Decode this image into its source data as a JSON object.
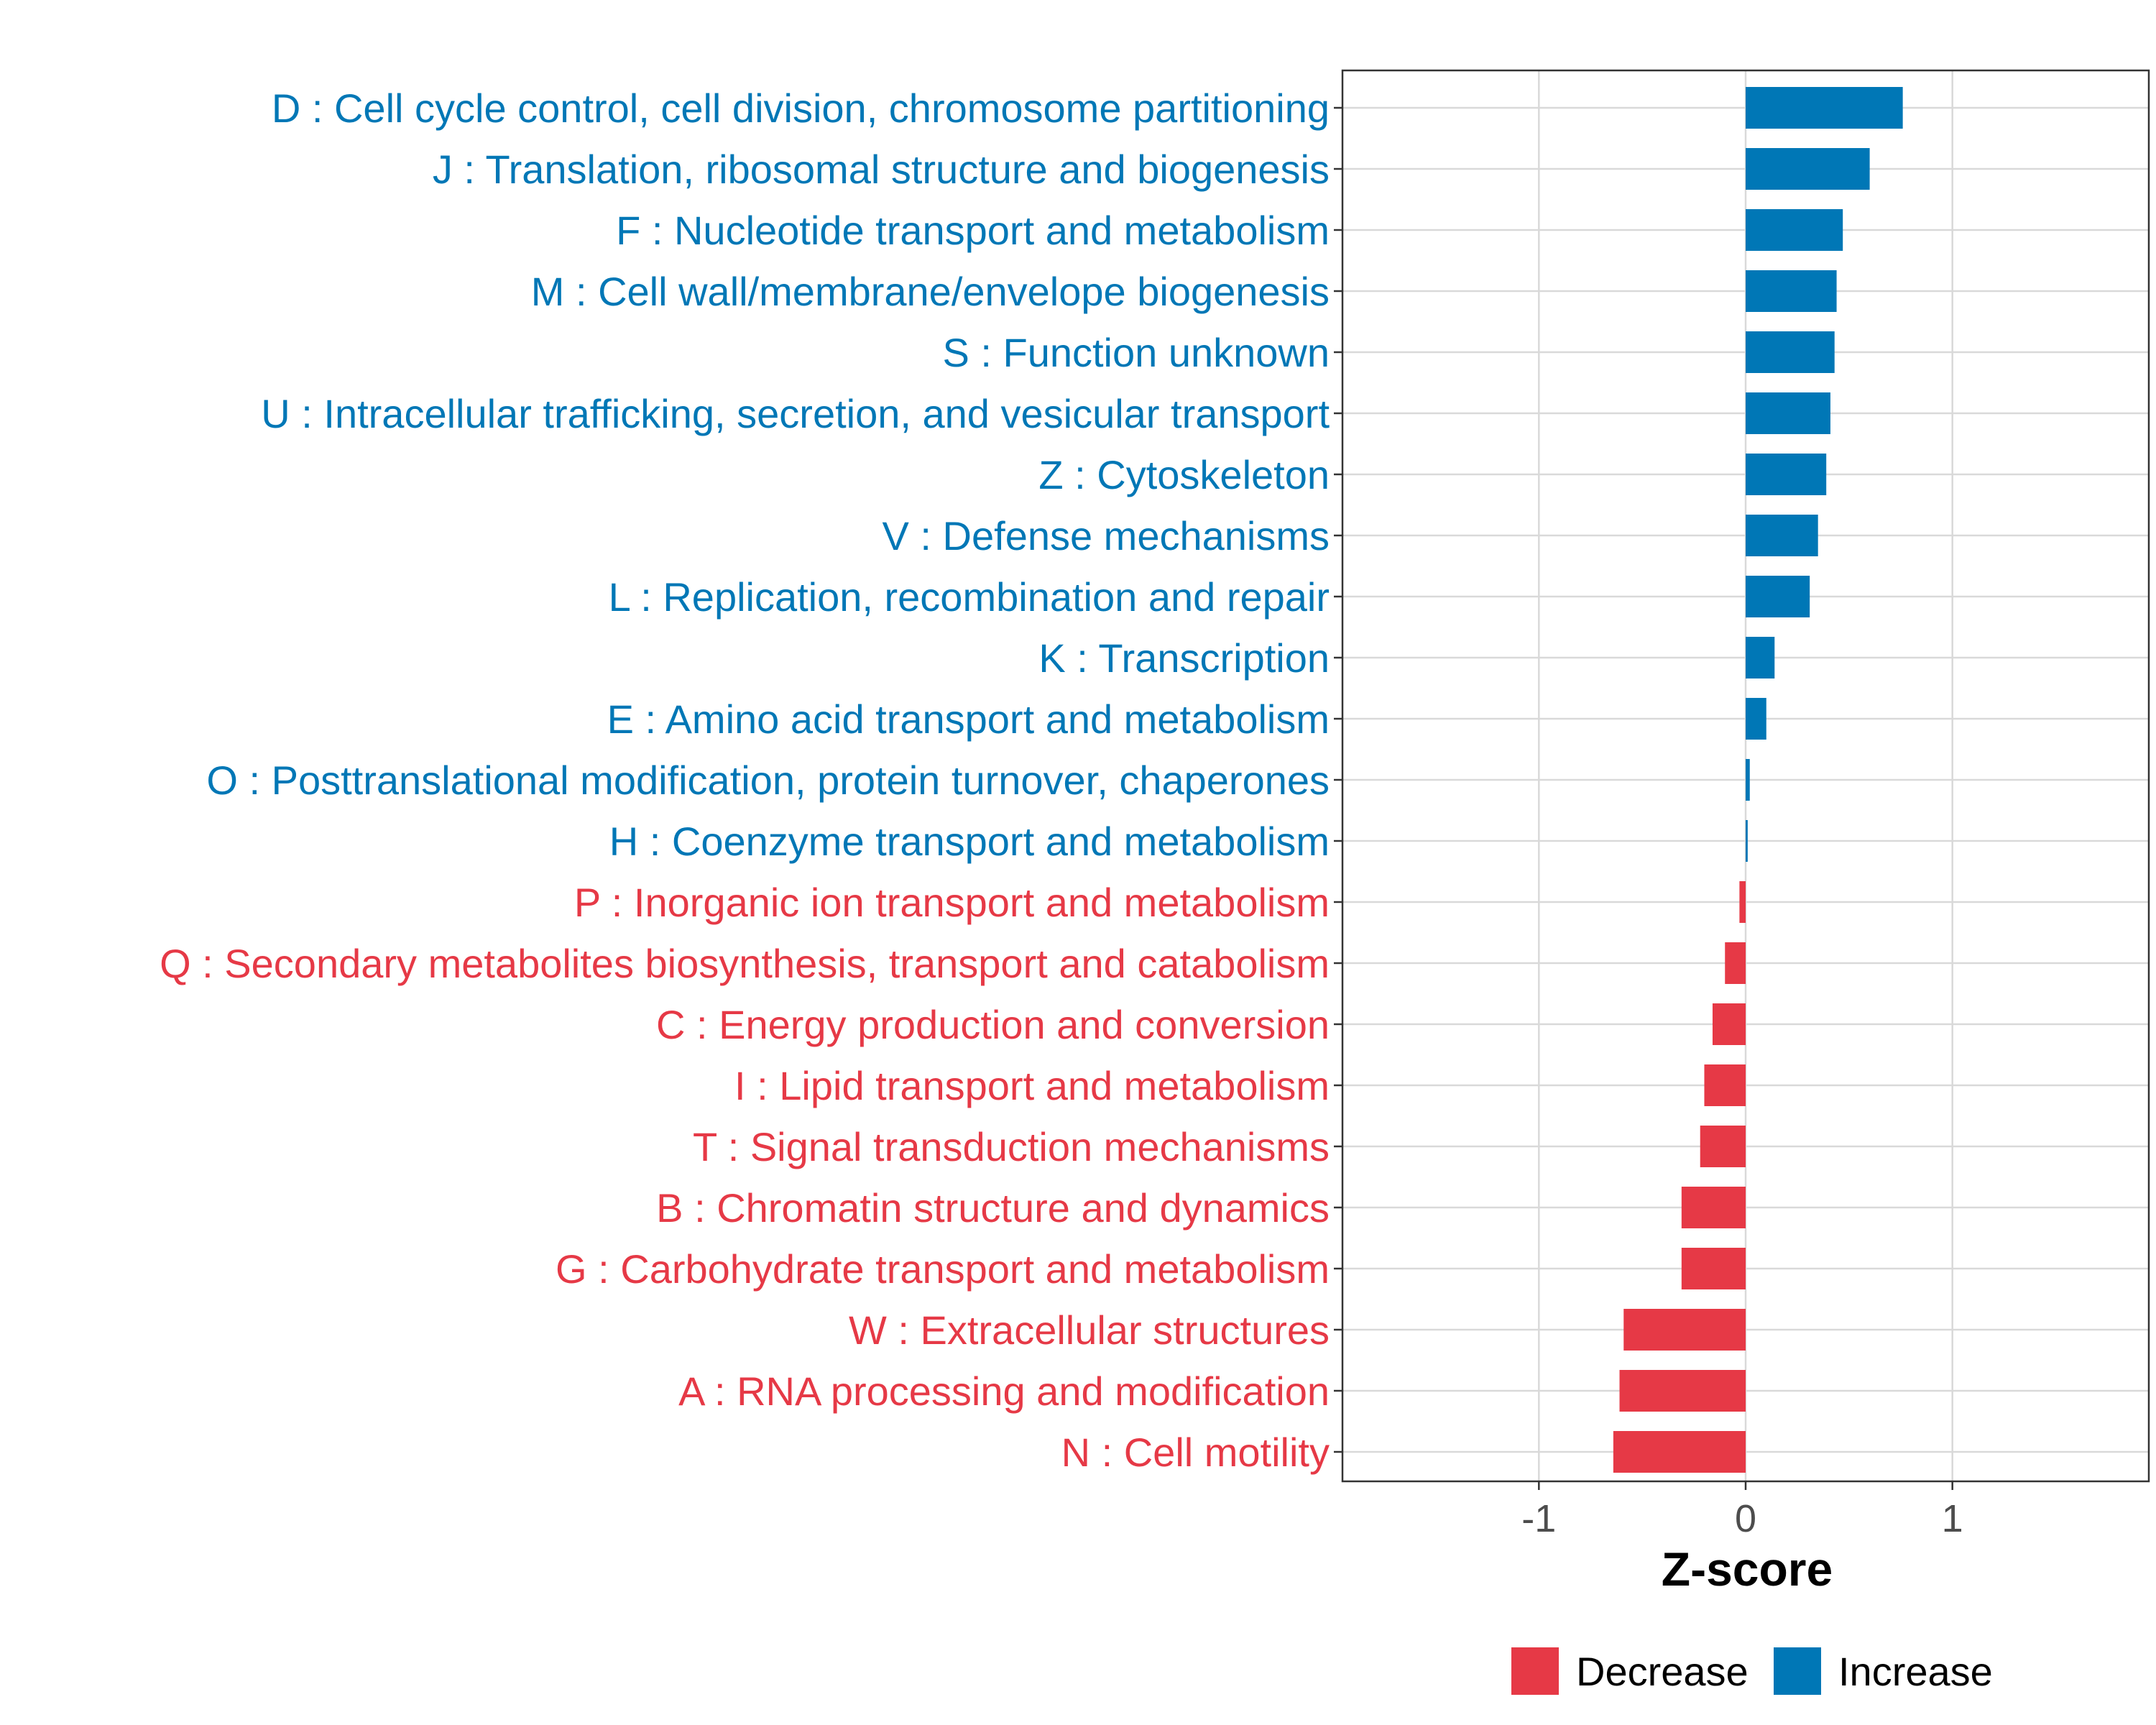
{
  "chart_data": {
    "type": "bar",
    "orientation": "horizontal",
    "title": "",
    "xlabel": "Z-score",
    "ylabel": "",
    "xlim": [
      -1.95,
      1.95
    ],
    "xticks": [
      -1,
      0,
      1
    ],
    "xtick_labels": [
      "-1",
      "0",
      "1"
    ],
    "grid": true,
    "legend_position": "bottom",
    "categories": [
      "D : Cell cycle control, cell division, chromosome partitioning",
      "J : Translation, ribosomal structure and biogenesis",
      "F : Nucleotide transport and metabolism",
      "M : Cell wall/membrane/envelope biogenesis",
      "S : Function unknown",
      "U : Intracellular trafficking, secretion, and vesicular transport",
      "Z : Cytoskeleton",
      "V : Defense mechanisms",
      "L : Replication, recombination and repair",
      "K : Transcription",
      "E : Amino acid transport and metabolism",
      "O : Posttranslational modification, protein turnover, chaperones",
      "H : Coenzyme transport and metabolism",
      "P : Inorganic ion transport and metabolism",
      "Q : Secondary metabolites biosynthesis, transport and catabolism",
      "C : Energy production and conversion",
      "I : Lipid transport and metabolism",
      "T : Signal transduction mechanisms",
      "B : Chromatin structure and dynamics",
      "G : Carbohydrate transport and metabolism",
      "W : Extracellular structures",
      "A : RNA processing and modification",
      "N : Cell motility"
    ],
    "values": [
      0.76,
      0.6,
      0.47,
      0.44,
      0.43,
      0.41,
      0.39,
      0.35,
      0.31,
      0.14,
      0.1,
      0.02,
      0.01,
      -0.03,
      -0.1,
      -0.16,
      -0.2,
      -0.22,
      -0.31,
      -0.31,
      -0.59,
      -0.61,
      -0.64
    ],
    "legend": [
      {
        "label": "Decrease",
        "color": "#E63946"
      },
      {
        "label": "Increase",
        "color": "#0077B6"
      }
    ],
    "colors": {
      "increase": "#0077B6",
      "decrease": "#E63946",
      "grid": "#D9D9D9",
      "panel_border": "#333333",
      "tick_text": "#4d4d4d"
    }
  }
}
